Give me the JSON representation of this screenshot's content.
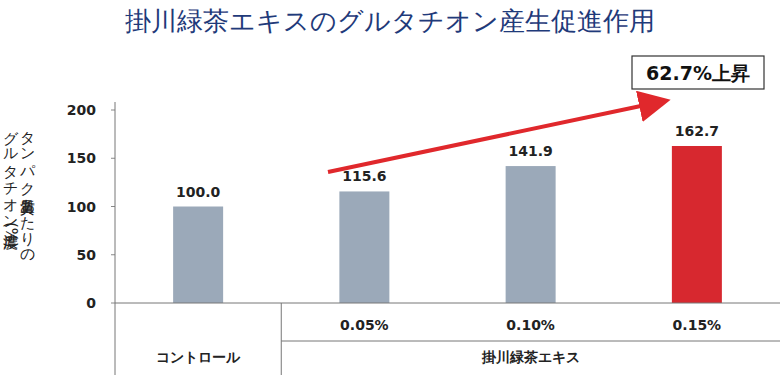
{
  "chart_data": {
    "type": "bar",
    "title": "掛川緑茶エキスのグルタチオン産生促進作用",
    "ylabel": [
      "タンパク質量あたりの",
      "グルタチオン濃度(%)"
    ],
    "categories": [
      "コントロール",
      "0.05%",
      "0.10%",
      "0.15%"
    ],
    "category_group": "掛川緑茶エキス",
    "values": [
      100.0,
      115.6,
      141.9,
      162.7
    ],
    "value_labels": [
      "100.0",
      "115.6",
      "141.9",
      "162.7"
    ],
    "colors": [
      "#9ba9b9",
      "#9ba9b9",
      "#9ba9b9",
      "#d7282f"
    ],
    "annotation": "62.7%上昇",
    "ylim": [
      0,
      200
    ],
    "yticks": [
      0,
      50,
      100,
      150,
      200
    ],
    "grid": false,
    "data_labels": true
  }
}
